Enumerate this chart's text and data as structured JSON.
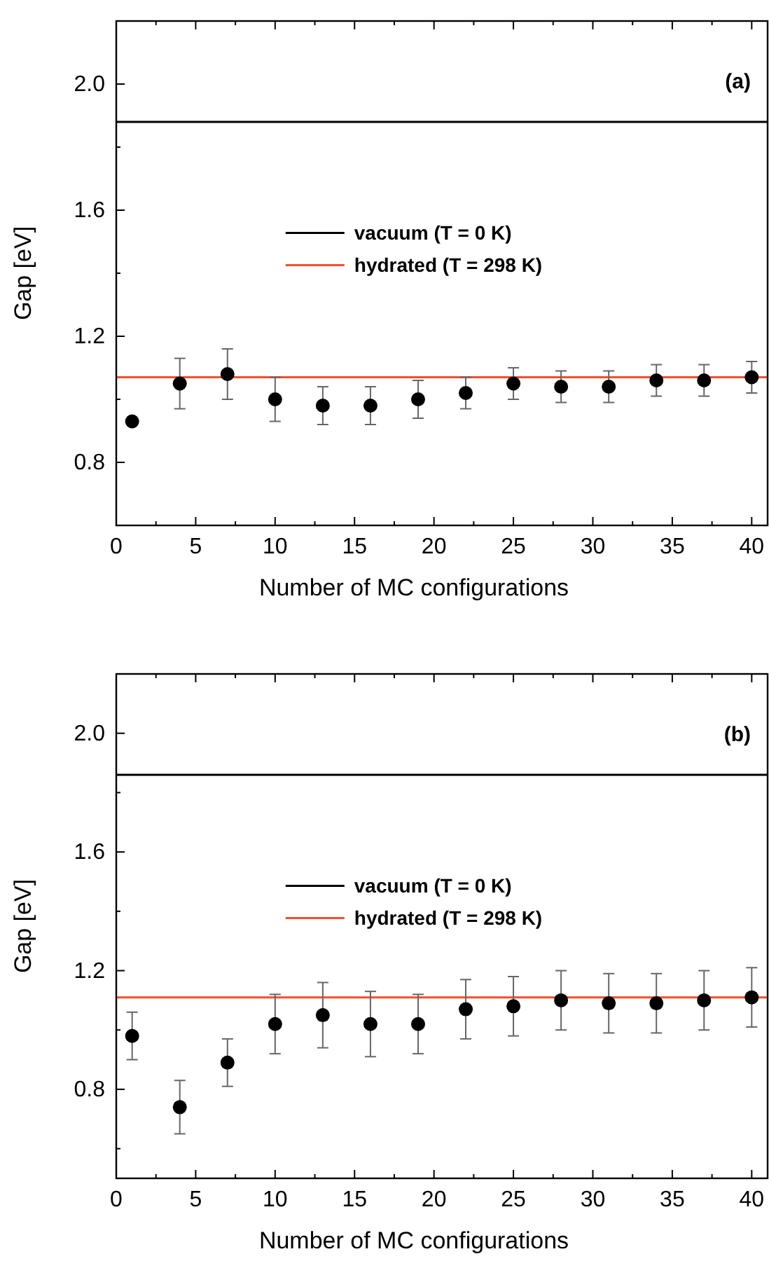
{
  "chart_data": [
    {
      "type": "scatter",
      "xlabel": "Number of MC configurations",
      "ylabel": "Gap [eV]",
      "xlim": [
        0,
        41
      ],
      "ylim": [
        0.6,
        2.2
      ],
      "xticks": [
        0,
        {
          "value": 2.5,
          "label": null
        },
        5,
        {
          "value": 7.5,
          "label": null
        },
        10,
        {
          "value": 12.5,
          "label": null
        },
        15,
        {
          "value": 17.5,
          "label": null
        },
        20,
        {
          "value": 22.5,
          "label": null
        },
        25,
        {
          "value": 27.5,
          "label": null
        },
        30,
        {
          "value": 32.5,
          "label": null
        },
        35,
        {
          "value": 37.5,
          "label": null
        },
        40
      ],
      "yticks": [
        {
          "value": 0.8,
          "label": "0.8"
        },
        {
          "value": 1.0,
          "label": null
        },
        {
          "value": 1.2,
          "label": "1.2"
        },
        {
          "value": 1.4,
          "label": null
        },
        {
          "value": 1.6,
          "label": "1.6"
        },
        {
          "value": 1.8,
          "label": null
        },
        {
          "value": 2.0,
          "label": "2.0"
        }
      ],
      "legend": "center",
      "series": [
        {
          "color": "#000000",
          "marker": "circle",
          "x": [
            1,
            4,
            7,
            10,
            13,
            16,
            19,
            22,
            25,
            28,
            31,
            34,
            37,
            40
          ],
          "values": [
            0.93,
            1.05,
            1.08,
            1.0,
            0.98,
            0.98,
            1.0,
            1.02,
            1.05,
            1.04,
            1.04,
            1.06,
            1.06,
            1.07
          ],
          "errors": [
            null,
            0.08,
            0.08,
            0.07,
            0.06,
            0.06,
            0.06,
            0.05,
            0.05,
            0.05,
            0.05,
            0.05,
            0.05,
            0.05
          ]
        },
        {
          "type": "line",
          "name": "vacuum (T = 0 K)",
          "color": "#000000",
          "x": [
            0,
            41
          ],
          "values": [
            1.88,
            1.88
          ]
        },
        {
          "type": "line",
          "name": "hydrated (T = 298 K)",
          "color": "#f0502e",
          "x": [
            0,
            41
          ],
          "values": [
            1.07,
            1.07
          ]
        }
      ],
      "annotations": [
        "(a)"
      ]
    },
    {
      "type": "scatter",
      "xlabel": "Number of MC configurations",
      "ylabel": "Gap [eV]",
      "xlim": [
        0,
        41
      ],
      "ylim": [
        0.5,
        2.2
      ],
      "xticks": [
        0,
        {
          "value": 2.5,
          "label": null
        },
        5,
        {
          "value": 7.5,
          "label": null
        },
        10,
        {
          "value": 12.5,
          "label": null
        },
        15,
        {
          "value": 17.5,
          "label": null
        },
        20,
        {
          "value": 22.5,
          "label": null
        },
        25,
        {
          "value": 27.5,
          "label": null
        },
        30,
        {
          "value": 32.5,
          "label": null
        },
        35,
        {
          "value": 37.5,
          "label": null
        },
        40
      ],
      "yticks": [
        {
          "value": 0.6,
          "label": null
        },
        {
          "value": 0.8,
          "label": "0.8"
        },
        {
          "value": 1.0,
          "label": null
        },
        {
          "value": 1.2,
          "label": "1.2"
        },
        {
          "value": 1.4,
          "label": null
        },
        {
          "value": 1.6,
          "label": "1.6"
        },
        {
          "value": 1.8,
          "label": null
        },
        {
          "value": 2.0,
          "label": "2.0"
        }
      ],
      "legend": "center",
      "series": [
        {
          "color": "#000000",
          "marker": "circle",
          "x": [
            1,
            4,
            7,
            10,
            13,
            16,
            19,
            22,
            25,
            28,
            31,
            34,
            37,
            40
          ],
          "values": [
            0.98,
            0.74,
            0.89,
            1.02,
            1.05,
            1.02,
            1.02,
            1.07,
            1.08,
            1.1,
            1.09,
            1.09,
            1.1,
            1.11
          ],
          "errors": [
            0.08,
            0.09,
            0.08,
            0.1,
            0.11,
            0.11,
            0.1,
            0.1,
            0.1,
            0.1,
            0.1,
            0.1,
            0.1,
            0.1
          ]
        },
        {
          "type": "line",
          "name": "vacuum (T = 0 K)",
          "color": "#000000",
          "x": [
            0,
            41
          ],
          "values": [
            1.86,
            1.86
          ]
        },
        {
          "type": "line",
          "name": "hydrated (T = 298 K)",
          "color": "#f0502e",
          "x": [
            0,
            41
          ],
          "values": [
            1.11,
            1.11
          ]
        }
      ],
      "annotations": [
        "(b)"
      ]
    }
  ]
}
